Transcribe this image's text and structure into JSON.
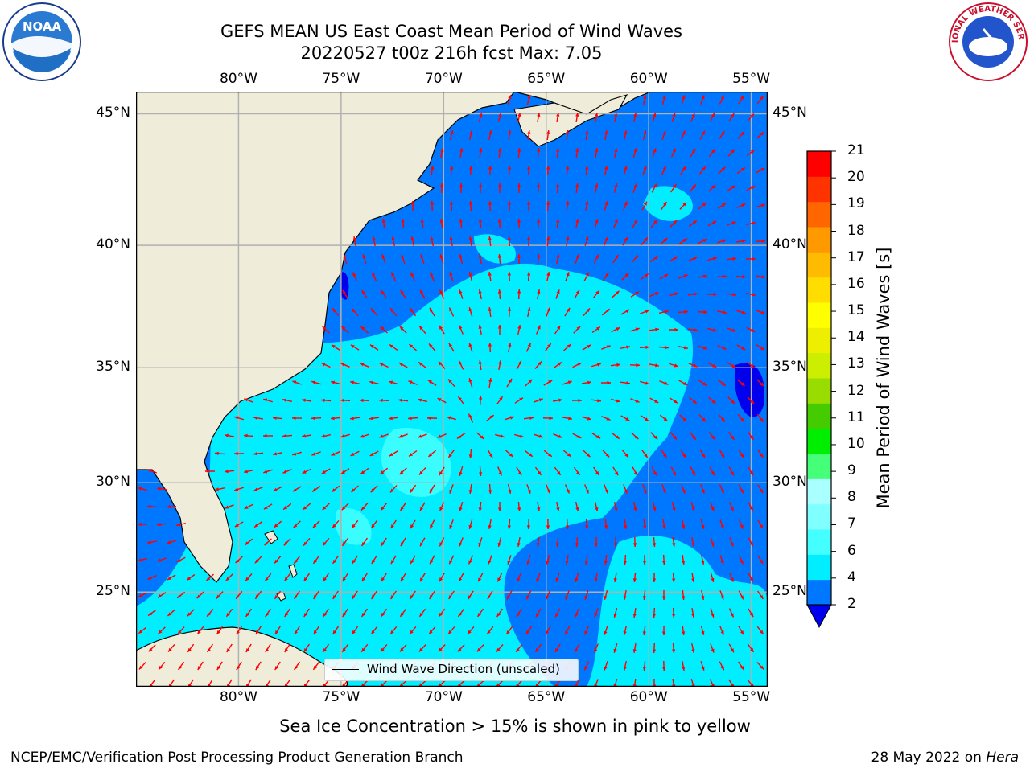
{
  "title_line1": "GEFS MEAN US East Coast Mean Period of Wind Waves",
  "title_line2": "20220527 t00z 216h fcst   Max: 7.05",
  "map": {
    "lon_labels": [
      "80°W",
      "75°W",
      "70°W",
      "65°W",
      "60°W",
      "55°W"
    ],
    "lat_labels": [
      "45°N",
      "40°N",
      "35°N",
      "30°N",
      "25°N"
    ],
    "lon_values": [
      -80,
      -75,
      -70,
      -65,
      -60,
      -55
    ],
    "lat_values": [
      45,
      40,
      35,
      30,
      25
    ],
    "extent": {
      "lon_min": -85,
      "lon_max": -54.2,
      "lat_min": 20.5,
      "lat_max": 45.8
    },
    "land_color": "#efedda",
    "arrow_color": "#ff0000",
    "gridline_color": "#b0b0b0"
  },
  "colorbar": {
    "label": "Mean Period of Wind Waves [s]",
    "ticks": [
      "2",
      "4",
      "6",
      "7",
      "8",
      "9",
      "10",
      "11",
      "12",
      "13",
      "14",
      "15",
      "16",
      "17",
      "18",
      "19",
      "20",
      "21"
    ],
    "colors": [
      "#0077ff",
      "#00eeff",
      "#44ffff",
      "#7fffff",
      "#aaffff",
      "#44ff77",
      "#00ee00",
      "#44cc00",
      "#99dd00",
      "#ccee00",
      "#eeee00",
      "#ffff00",
      "#ffdd00",
      "#ffbb00",
      "#ff9900",
      "#ff6600",
      "#ff3300",
      "#ff0000"
    ],
    "under_color": "#0000ee"
  },
  "legend_label": "Wind Wave Direction (unscaled)",
  "sea_ice_note": "Sea Ice Concentration > 15% is shown in pink to yellow",
  "footer_left": "NCEP/EMC/Verification Post Processing Product Generation Branch",
  "footer_date": "28 May 2022 on ",
  "footer_machine": "Hera",
  "logos": {
    "noaa_text": "NOAA",
    "nws_text": "NATIONAL WEATHER SERVICE"
  },
  "field_colors": {
    "band_2_4": "#0077ff",
    "band_4_6": "#00eeff",
    "band_6_7": "#44ffff",
    "under": "#0000ee"
  }
}
